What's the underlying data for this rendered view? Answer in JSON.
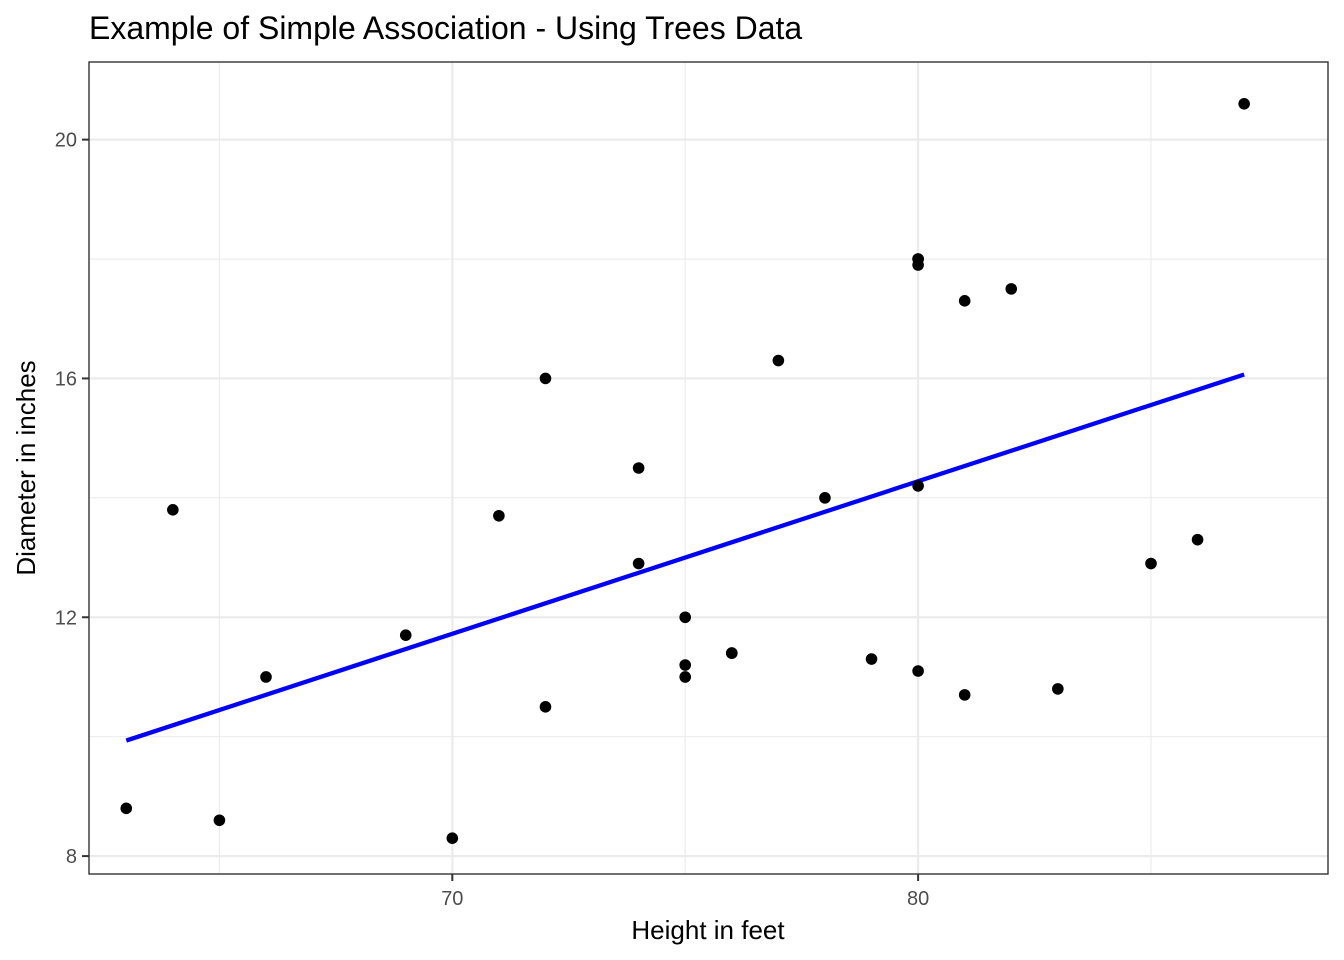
{
  "chart_data": {
    "type": "scatter",
    "title": "Example of Simple Association - Using Trees Data",
    "xlabel": "Height in feet",
    "ylabel": "Diameter in inches",
    "xlim": [
      62.2,
      88.8
    ],
    "ylim": [
      7.7,
      21.3
    ],
    "x_ticks": [
      70,
      80
    ],
    "x_tick_labels": [
      "70",
      "80"
    ],
    "x_minor": [
      65,
      75,
      85
    ],
    "y_ticks": [
      8,
      12,
      16,
      20
    ],
    "y_tick_labels": [
      "8",
      "12",
      "16",
      "20"
    ],
    "y_minor": [
      10,
      14,
      18
    ],
    "grid": true,
    "points": {
      "x": [
        70,
        65,
        63,
        72,
        81,
        83,
        66,
        75,
        80,
        75,
        79,
        76,
        76,
        69,
        75,
        74,
        85,
        86,
        71,
        64,
        78,
        80,
        74,
        72,
        77,
        81,
        82,
        80,
        80,
        80,
        87
      ],
      "y": [
        8.3,
        8.6,
        8.8,
        10.5,
        10.7,
        10.8,
        11.0,
        11.0,
        11.1,
        11.2,
        11.3,
        11.4,
        11.4,
        11.7,
        12.0,
        12.9,
        12.9,
        13.3,
        13.7,
        13.8,
        14.0,
        14.2,
        14.5,
        16.0,
        16.3,
        17.3,
        17.5,
        17.9,
        18.0,
        18.0,
        20.6
      ]
    },
    "fit_line": {
      "color": "#0000ff",
      "x": [
        63,
        87
      ],
      "y": [
        9.935,
        16.066
      ]
    }
  }
}
